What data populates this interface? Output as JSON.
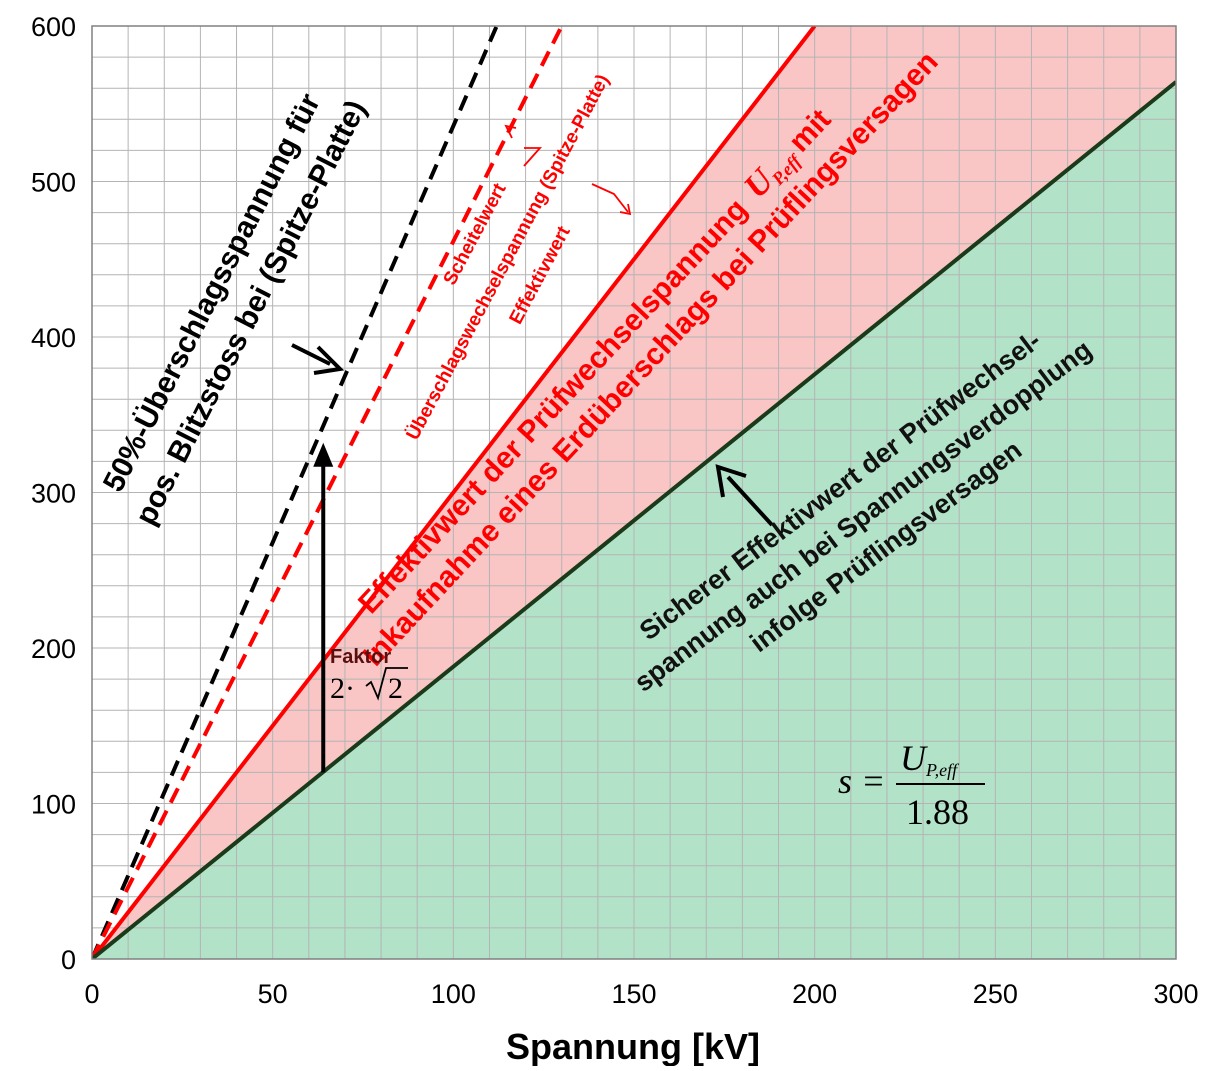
{
  "chart_data": {
    "type": "line",
    "title": "",
    "xlabel": "Spannung [kV]",
    "ylabel": "",
    "xlim": [
      0,
      300
    ],
    "ylim": [
      0,
      600
    ],
    "x_ticks": [
      0,
      50,
      100,
      150,
      200,
      250,
      300
    ],
    "y_ticks": [
      0,
      100,
      200,
      300,
      400,
      500,
      600
    ],
    "grid": true,
    "minor_grid_step": [
      10,
      20
    ],
    "legend": "none",
    "series": [
      {
        "values": [
          [
            0,
            0
          ],
          [
            112,
            600
          ]
        ],
        "style": "dashed",
        "color": "#000000"
      },
      {
        "values": [
          [
            0,
            0
          ],
          [
            130,
            600
          ]
        ],
        "style": "dashed",
        "color": "#ff0000"
      },
      {
        "values": [
          [
            0,
            0
          ],
          [
            200,
            600
          ]
        ],
        "style": "solid",
        "color": "#ff0000"
      },
      {
        "values": [
          [
            0,
            0
          ],
          [
            300,
            564
          ]
        ],
        "style": "solid",
        "color": "#1a3a1a"
      }
    ],
    "fill_regions": [
      {
        "between": "red-solid and dark-green",
        "color": "#f9c5c5"
      },
      {
        "below": "dark-green",
        "color": "#b2e3c8"
      }
    ],
    "arrow": {
      "x": 64,
      "y_from": 120,
      "y_to": 332
    },
    "annotations": {
      "impulse": [
        "50%-Überschlagsspannung für",
        "pos. Blitzstoss bei (Spitze-Platte)"
      ],
      "scheitelwert": "Scheitelwert",
      "ueberschlag_ws": "Überschlagswechselspannung (Spitze-Platte)",
      "effektivwert": "Effektivwert",
      "pruef_line1": "Effektivwert der Prüfwechselspannung",
      "pruef_symbol": "U",
      "pruef_sub": "P,eff",
      "pruef_mit": "mit",
      "pruef_line2": "Inkaufnahme eines Erdüberschlags bei Prüflingsversagen",
      "sicher": [
        "Sicherer Effektivwert der Prüfwechsel-",
        "spannung auch bei Spannungsverdopplung",
        "infolge Prüflingsversagen"
      ],
      "faktor": "Faktor",
      "faktor_expr": "2·",
      "faktor_root": "2",
      "formula_lhs": "s =",
      "formula_num": "U",
      "formula_num_sub": "P,eff",
      "formula_den": "1.88"
    }
  },
  "colors": {
    "red": "#ff0000",
    "black": "#000000",
    "dark_green": "#1a3a1a",
    "pink_fill": "#f9c5c5",
    "green_fill": "#b2e3c8",
    "grid": "#b4b4b4"
  }
}
